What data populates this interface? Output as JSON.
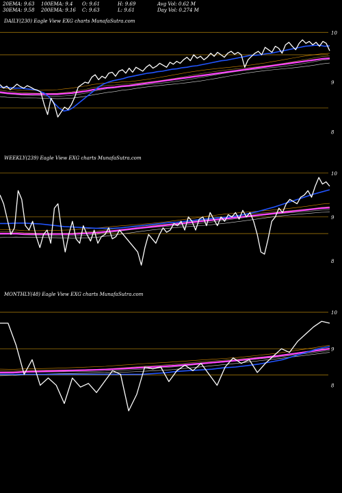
{
  "header": {
    "ema20": "20EMA: 9.63",
    "ema100": "100EMA: 9.4",
    "open": "O: 9.61",
    "high": "H: 9.69",
    "avg_vol": "Avg Vol: 0.62  M",
    "ema30": "30EMA: 9.58",
    "ema200": "200EMA: 9.16",
    "close": "C: 9.63",
    "low": "L: 9.61",
    "day_vol": "Day Vol: 0.274  M"
  },
  "colors": {
    "background": "#000000",
    "price": "#ffffff",
    "ema_fast": "#2255ff",
    "ema_slow": "#ff44ff",
    "guide": "#b8860b",
    "ma_lines": [
      "#ffffff",
      "#cccccc",
      "#c8a040",
      "#ffa500"
    ]
  },
  "chart_data": [
    {
      "type": "line",
      "title": "DAILY(230) Eagle  View  EXG charts MunafaSutra.com",
      "yticks": [
        "10",
        "9",
        "8"
      ],
      "ylim": [
        7.9,
        10.1
      ],
      "price": [
        8.95,
        8.88,
        8.92,
        8.85,
        8.9,
        8.96,
        8.91,
        8.88,
        8.93,
        8.9,
        8.86,
        8.84,
        8.8,
        8.55,
        8.35,
        8.68,
        8.55,
        8.3,
        8.4,
        8.5,
        8.45,
        8.55,
        8.7,
        8.9,
        8.95,
        9.0,
        8.98,
        9.1,
        9.15,
        9.05,
        9.12,
        9.08,
        9.18,
        9.2,
        9.12,
        9.22,
        9.25,
        9.18,
        9.28,
        9.2,
        9.3,
        9.26,
        9.22,
        9.3,
        9.35,
        9.28,
        9.32,
        9.38,
        9.34,
        9.3,
        9.4,
        9.36,
        9.42,
        9.38,
        9.45,
        9.5,
        9.43,
        9.55,
        9.48,
        9.52,
        9.45,
        9.5,
        9.58,
        9.52,
        9.6,
        9.55,
        9.5,
        9.58,
        9.62,
        9.56,
        9.6,
        9.55,
        9.3,
        9.45,
        9.52,
        9.58,
        9.62,
        9.55,
        9.7,
        9.65,
        9.6,
        9.72,
        9.68,
        9.58,
        9.75,
        9.8,
        9.72,
        9.65,
        9.78,
        9.85,
        9.78,
        9.82,
        9.75,
        9.8,
        9.72,
        9.82,
        9.78,
        9.63
      ],
      "ema_fast": [
        8.9,
        8.9,
        8.89,
        8.88,
        8.88,
        8.87,
        8.86,
        8.85,
        8.82,
        8.78,
        8.7,
        8.58,
        8.48,
        8.42,
        8.44,
        8.5,
        8.58,
        8.66,
        8.74,
        8.82,
        8.9,
        8.96,
        9.0,
        9.03,
        9.05,
        9.07,
        9.1,
        9.12,
        9.14,
        9.16,
        9.18,
        9.19,
        9.21,
        9.22,
        9.24,
        9.26,
        9.27,
        9.29,
        9.3,
        9.32,
        9.33,
        9.35,
        9.37,
        9.39,
        9.41,
        9.43,
        9.44,
        9.46,
        9.48,
        9.5,
        9.52,
        9.54,
        9.54,
        9.55,
        9.57,
        9.58,
        9.6,
        9.62,
        9.64,
        9.66,
        9.68,
        9.7,
        9.72,
        9.73,
        9.74,
        9.74,
        9.72,
        9.73
      ],
      "ema_slow": [
        8.8,
        8.78,
        8.77,
        8.76,
        8.76,
        8.76,
        8.76,
        8.76,
        8.76,
        8.77,
        8.78,
        8.8,
        8.82,
        8.85,
        8.87,
        8.89,
        8.9,
        8.92,
        8.93,
        8.95,
        8.97,
        8.99,
        9.01,
        9.03,
        9.05,
        9.07,
        9.09,
        9.11,
        9.13,
        9.15,
        9.17,
        9.19,
        9.21,
        9.23,
        9.25,
        9.27,
        9.29,
        9.31,
        9.33,
        9.35,
        9.37,
        9.39,
        9.41,
        9.43,
        9.45,
        9.47,
        9.48
      ],
      "guides": [
        10,
        9.55,
        8.48
      ]
    },
    {
      "type": "line",
      "title": "WEEKLY(239) Eagle  View  EXG charts MunafaSutra.com",
      "yticks": [
        "10",
        "9",
        "8"
      ],
      "ylim": [
        7.7,
        10.2
      ],
      "price": [
        9.5,
        9.3,
        8.95,
        8.6,
        8.75,
        9.6,
        9.4,
        8.8,
        8.7,
        8.9,
        8.55,
        8.3,
        8.6,
        8.7,
        8.4,
        9.2,
        9.3,
        8.7,
        8.2,
        8.6,
        8.9,
        8.5,
        8.4,
        8.8,
        8.6,
        8.45,
        8.7,
        8.4,
        8.55,
        8.6,
        8.75,
        8.5,
        8.55,
        8.7,
        8.6,
        8.5,
        8.4,
        8.3,
        8.2,
        7.9,
        8.3,
        8.6,
        8.5,
        8.4,
        8.6,
        8.75,
        8.65,
        8.7,
        8.85,
        8.8,
        8.9,
        8.7,
        9.0,
        8.9,
        8.7,
        8.95,
        9.0,
        8.8,
        9.1,
        8.95,
        8.8,
        9.0,
        8.9,
        9.05,
        9.0,
        9.1,
        8.95,
        9.15,
        9.0,
        9.1,
        8.9,
        8.6,
        8.2,
        8.15,
        8.5,
        8.9,
        9.0,
        9.2,
        9.1,
        9.3,
        9.4,
        9.35,
        9.3,
        9.45,
        9.5,
        9.6,
        9.45,
        9.7,
        9.9,
        9.75,
        9.8,
        9.7
      ],
      "ema_fast": [
        8.85,
        8.85,
        8.86,
        8.86,
        8.85,
        8.84,
        8.82,
        8.8,
        8.78,
        8.77,
        8.76,
        8.75,
        8.74,
        8.74,
        8.74,
        8.75,
        8.77,
        8.79,
        8.81,
        8.83,
        8.85,
        8.87,
        8.88,
        8.9,
        8.92,
        8.94,
        8.96,
        8.98,
        8.99,
        9.01,
        9.04,
        9.08,
        9.12,
        9.17,
        9.22,
        9.28,
        9.34,
        9.4,
        9.46,
        9.52,
        9.57,
        9.62
      ],
      "ema_slow": [
        8.62,
        8.62,
        8.62,
        8.61,
        8.61,
        8.61,
        8.61,
        8.61,
        8.61,
        8.61,
        8.62,
        8.63,
        8.64,
        8.66,
        8.68,
        8.7,
        8.72,
        8.74,
        8.76,
        8.78,
        8.8,
        8.82,
        8.84,
        8.86,
        8.88,
        8.9,
        8.92,
        8.94,
        8.96,
        8.98,
        9.0,
        9.02,
        9.04,
        9.06,
        9.08,
        9.1,
        9.12,
        9.14,
        9.16,
        9.18,
        9.2,
        9.21
      ],
      "guides": [
        10,
        9,
        8.62
      ]
    },
    {
      "type": "line",
      "title": "MONTHLY(48) Eagle  View  EXG charts MunafaSutra.com",
      "yticks": [
        "10",
        "9",
        "8"
      ],
      "ylim": [
        7.3,
        10.3
      ],
      "price": [
        9.7,
        9.7,
        9.1,
        8.3,
        8.7,
        8.0,
        8.2,
        8.0,
        7.5,
        8.2,
        7.95,
        8.05,
        7.8,
        8.1,
        8.4,
        8.3,
        7.3,
        7.75,
        8.5,
        8.45,
        8.5,
        8.1,
        8.4,
        8.55,
        8.4,
        8.6,
        8.3,
        8.0,
        8.5,
        8.75,
        8.6,
        8.7,
        8.35,
        8.6,
        8.8,
        9.0,
        8.9,
        9.2,
        9.4,
        9.6,
        9.75,
        9.7
      ],
      "ema_fast": [
        8.3,
        8.3,
        8.3,
        8.3,
        8.3,
        8.3,
        8.3,
        8.3,
        8.3,
        8.3,
        8.3,
        8.3,
        8.3,
        8.32,
        8.34,
        8.38,
        8.4,
        8.42,
        8.44,
        8.48,
        8.5,
        8.54,
        8.58,
        8.64,
        8.7,
        8.8,
        8.9,
        9.0,
        9.06
      ],
      "ema_slow": [
        8.35,
        8.35,
        8.37,
        8.38,
        8.39,
        8.4,
        8.41,
        8.42,
        8.43,
        8.45,
        8.47,
        8.49,
        8.51,
        8.53,
        8.56,
        8.59,
        8.62,
        8.65,
        8.68,
        8.72,
        8.76,
        8.8,
        8.85,
        8.9,
        8.95,
        9.0
      ],
      "guides": [
        10,
        9,
        8.28
      ]
    }
  ]
}
